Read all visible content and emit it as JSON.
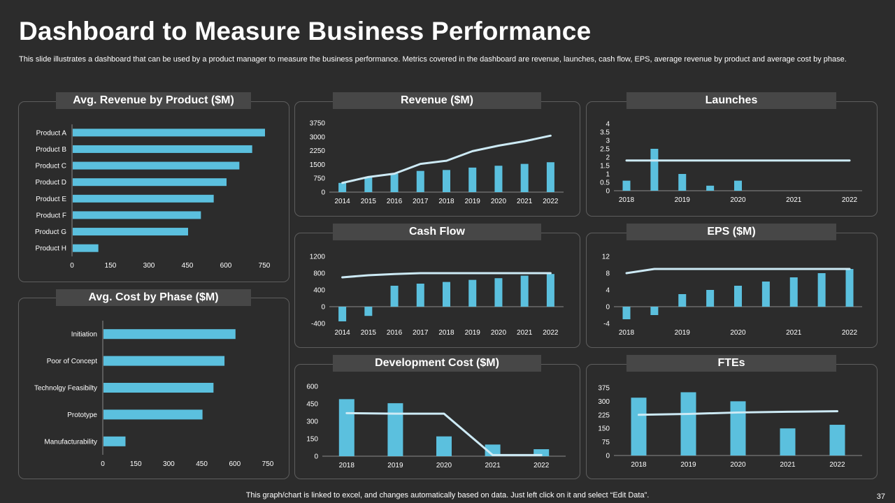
{
  "header": {
    "title": "Dashboard to Measure Business Performance",
    "subtitle": "This slide illustrates a dashboard that can be used by a product manager to measure the business performance. Metrics covered in the dashboard are revenue, launches, cash flow, EPS, average revenue by product and average cost by phase."
  },
  "footer": {
    "note": "This graph/chart is linked to excel,  and changes automatically based on data. Just left click on it and select “Edit Data”.",
    "page_number": "37"
  },
  "colors": {
    "background": "#2c2c2c",
    "bar": "#5bc0de",
    "line": "#cdeaf5",
    "title_bg": "#474747",
    "panel_border": "#5e5e5e"
  },
  "chart_data": [
    {
      "id": "avg_revenue",
      "type": "bar",
      "orientation": "horizontal",
      "title": "Avg. Revenue by Product ($M)",
      "categories": [
        "Product A",
        "Product B",
        "Product C",
        "Product D",
        "Product E",
        "Product F",
        "Product G",
        "Product H"
      ],
      "values": [
        750,
        700,
        650,
        600,
        550,
        500,
        450,
        100
      ],
      "xlim": [
        0,
        750
      ],
      "xticks": [
        0,
        150,
        300,
        450,
        600,
        750
      ]
    },
    {
      "id": "avg_cost",
      "type": "bar",
      "orientation": "horizontal",
      "title": "Avg. Cost by Phase ($M)",
      "categories": [
        "Initiation",
        "Poor of Concept",
        "Technolgy Feasibilty",
        "Prototype",
        "Manufacturability"
      ],
      "values": [
        600,
        550,
        500,
        450,
        100
      ],
      "xlim": [
        0,
        750
      ],
      "xticks": [
        0,
        150,
        300,
        450,
        600,
        750
      ]
    },
    {
      "id": "revenue",
      "type": "bar",
      "title": "Revenue ($M)",
      "categories": [
        "2014",
        "2015",
        "2016",
        "2017",
        "2018",
        "2019",
        "2020",
        "2021",
        "2022"
      ],
      "series": [
        {
          "kind": "bar",
          "values": [
            500,
            800,
            1000,
            1150,
            1200,
            1330,
            1430,
            1530,
            1620
          ]
        },
        {
          "kind": "line",
          "values": [
            500,
            820,
            1000,
            1530,
            1700,
            2220,
            2520,
            2760,
            3060
          ]
        }
      ],
      "ylim": [
        0,
        3750
      ],
      "yticks": [
        0,
        750,
        1500,
        2250,
        3000,
        3750
      ]
    },
    {
      "id": "launches",
      "type": "bar",
      "title": "Launches",
      "categories": [
        "2018",
        "2019",
        "2020",
        "2021",
        "2022"
      ],
      "bars": [
        {
          "x": 2018,
          "value": 0.6
        },
        {
          "x": 2018.5,
          "value": 2.5
        },
        {
          "x": 2019,
          "value": 1.0
        },
        {
          "x": 2019.5,
          "value": 0.3
        },
        {
          "x": 2020,
          "value": 0.6
        }
      ],
      "line": {
        "x": [
          2018,
          2022
        ],
        "values": [
          1.8,
          1.8
        ]
      },
      "ylim": [
        0,
        4
      ],
      "yticks": [
        0,
        0.5,
        1,
        1.5,
        2,
        2.5,
        3,
        3.5,
        4
      ]
    },
    {
      "id": "cash_flow",
      "type": "bar",
      "title": "Cash Flow",
      "categories": [
        "2014",
        "2015",
        "2016",
        "2017",
        "2018",
        "2019",
        "2020",
        "2021",
        "2022"
      ],
      "series": [
        {
          "kind": "bar",
          "values": [
            -350,
            -220,
            500,
            550,
            590,
            640,
            680,
            740,
            780
          ]
        },
        {
          "kind": "line",
          "values": [
            700,
            750,
            780,
            800,
            800,
            800,
            800,
            800,
            800
          ]
        }
      ],
      "ylim": [
        -400,
        1200
      ],
      "yticks": [
        -400,
        0,
        400,
        800,
        1200
      ]
    },
    {
      "id": "eps",
      "type": "bar",
      "title": "EPS ($M)",
      "categories": [
        "2018",
        "2019",
        "2020",
        "2021",
        "2022"
      ],
      "bars": [
        {
          "x": 2018,
          "value": -3
        },
        {
          "x": 2018.5,
          "value": -2
        },
        {
          "x": 2019,
          "value": 3
        },
        {
          "x": 2019.5,
          "value": 4
        },
        {
          "x": 2020,
          "value": 5
        },
        {
          "x": 2020.5,
          "value": 6
        },
        {
          "x": 2021,
          "value": 7
        },
        {
          "x": 2021.5,
          "value": 8
        },
        {
          "x": 2022,
          "value": 9
        }
      ],
      "line": {
        "x": [
          2018,
          2018.5,
          2019,
          2019.5,
          2020,
          2020.5,
          2021,
          2021.5,
          2022
        ],
        "values": [
          8,
          9,
          9,
          9,
          9,
          9,
          9,
          9,
          9
        ]
      },
      "ylim": [
        -4,
        12
      ],
      "yticks": [
        -4,
        0,
        4,
        8,
        12
      ]
    },
    {
      "id": "dev_cost",
      "type": "bar",
      "title": "Development Cost ($M)",
      "categories": [
        "2018",
        "2019",
        "2020",
        "2021",
        "2022"
      ],
      "series": [
        {
          "kind": "bar",
          "values": [
            490,
            455,
            170,
            100,
            60
          ]
        },
        {
          "kind": "line",
          "values": [
            370,
            365,
            365,
            10,
            10
          ]
        }
      ],
      "ylim": [
        0,
        600
      ],
      "yticks": [
        0,
        150,
        300,
        450,
        600
      ]
    },
    {
      "id": "ftes",
      "type": "bar",
      "title": "FTEs",
      "categories": [
        "2018",
        "2019",
        "2020",
        "2021",
        "2022"
      ],
      "series": [
        {
          "kind": "bar",
          "values": [
            320,
            350,
            300,
            150,
            170
          ]
        },
        {
          "kind": "line",
          "values": [
            225,
            230,
            238,
            242,
            245
          ]
        }
      ],
      "ylim": [
        0,
        375
      ],
      "yticks": [
        0,
        75,
        150,
        225,
        300,
        375
      ]
    }
  ]
}
